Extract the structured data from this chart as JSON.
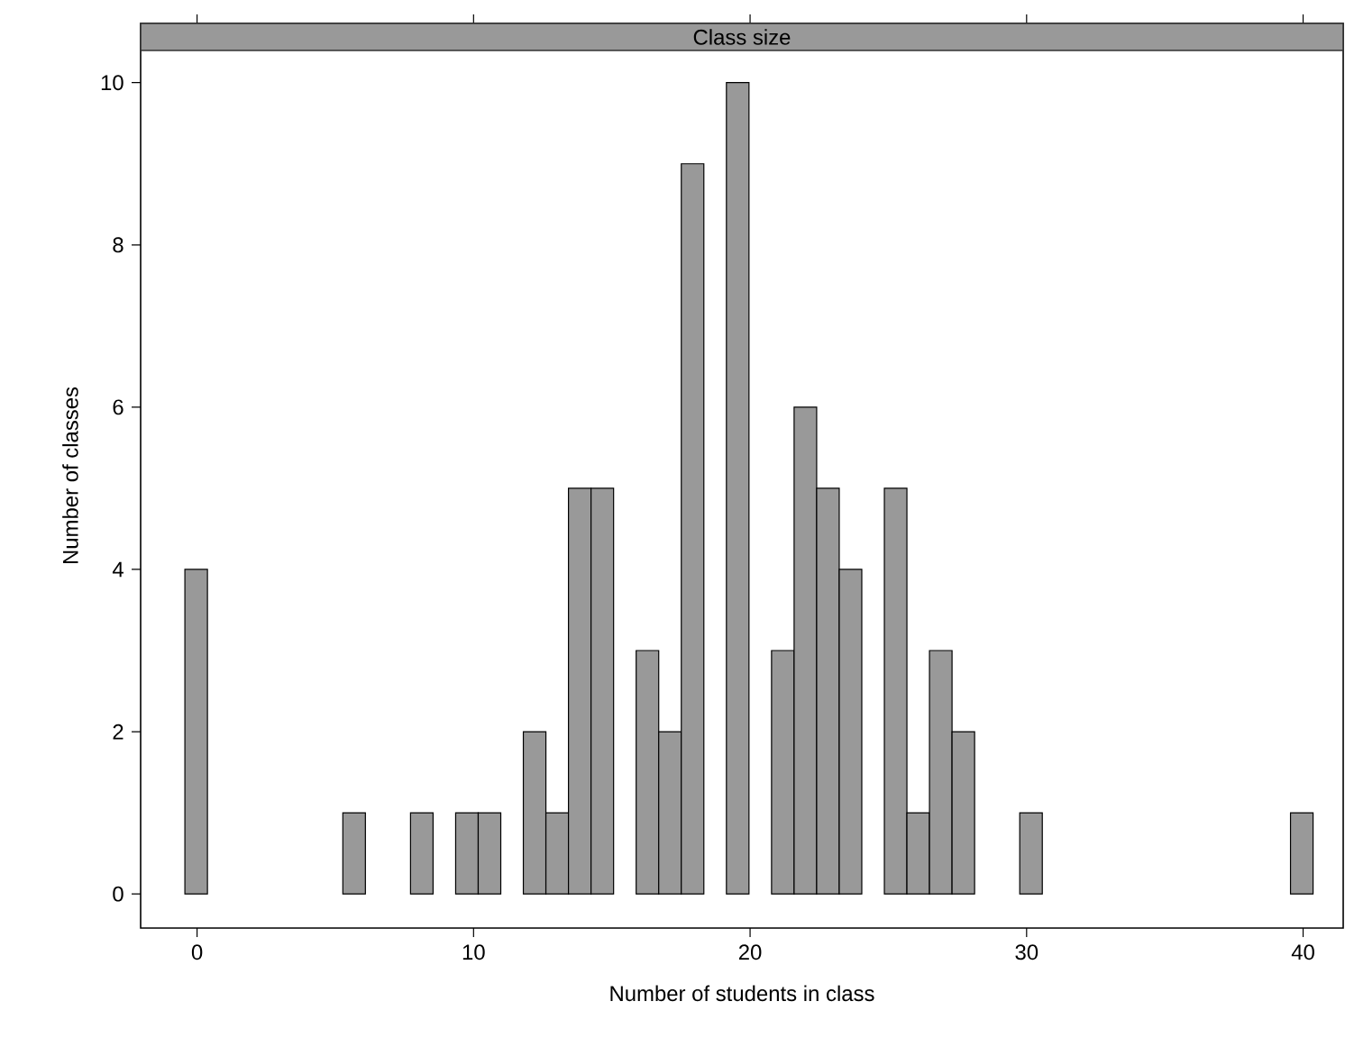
{
  "chart_data": {
    "type": "histogram",
    "title": "Class size",
    "xlabel": "Number of students in class",
    "ylabel": "Number of classes",
    "bins": [
      -0.44,
      0.376,
      1.192,
      2.008,
      2.824,
      3.64,
      4.456,
      5.272,
      6.088,
      6.904,
      7.72,
      8.536,
      9.352,
      10.168,
      10.984,
      11.8,
      12.616,
      13.432,
      14.248,
      15.064,
      15.88,
      16.696,
      17.512,
      18.328,
      19.144,
      19.96,
      20.776,
      21.592,
      22.408,
      23.224,
      24.04,
      24.856,
      25.672,
      26.488,
      27.304,
      28.12,
      28.936,
      29.752,
      30.568,
      31.384,
      32.2,
      33.016,
      33.832,
      34.648,
      35.464,
      36.28,
      37.096,
      37.912,
      38.728,
      39.544,
      40.36
    ],
    "values": [
      4,
      0,
      0,
      0,
      0,
      0,
      0,
      1,
      0,
      0,
      1,
      0,
      1,
      1,
      0,
      2,
      1,
      5,
      5,
      0,
      3,
      2,
      9,
      0,
      10,
      0,
      3,
      6,
      5,
      4,
      0,
      5,
      1,
      3,
      2,
      0,
      0,
      1,
      0,
      0,
      0,
      0,
      0,
      0,
      0,
      0,
      0,
      0,
      0,
      1
    ],
    "color": "#999999",
    "xlim": [
      -2.04,
      41.45
    ],
    "ylim": [
      -0.42,
      10.73
    ],
    "xticks": [
      0,
      10,
      20,
      30,
      40
    ],
    "yticks": [
      0,
      2,
      4,
      6,
      8,
      10
    ]
  }
}
